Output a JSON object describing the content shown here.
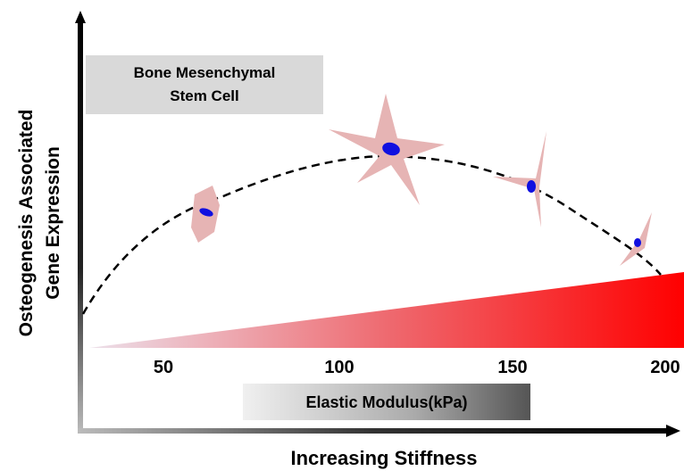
{
  "y_axis_label": [
    "Osteogenesis Associated",
    "Gene Expression"
  ],
  "x_axis_label": "Increasing Stiffness",
  "cell_box": [
    "Bone Mesenchymal",
    "Stem Cell"
  ],
  "scale": {
    "label": "Elastic Modulus(kPa)",
    "ticks": [
      "50",
      "100",
      "150",
      "200"
    ]
  }
}
